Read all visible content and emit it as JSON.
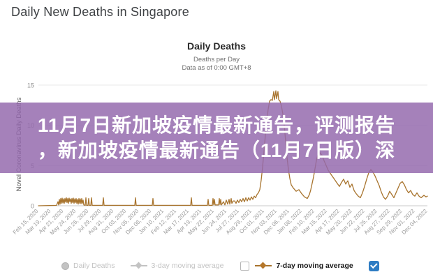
{
  "page_title": "Daily New Deaths in Singapore",
  "overlay": {
    "line1": "11月7日新加坡疫情最新通告，评测报告",
    "line2": "，新加坡疫情最新通告（11月7日版）深",
    "bg_color": "#9a6bb0"
  },
  "legend": {
    "daily_deaths_label": "Daily Deaths",
    "avg3_label": "3-day moving average",
    "avg7_label": "7-day moving average",
    "daily_deaths_state": "disabled",
    "avg3_state": "disabled",
    "avg7_state": "active",
    "checkbox_before_avg7_checked": false,
    "checkbox_right_checked": true,
    "active_color": "#a8742e",
    "disabled_color": "#c3c3c3",
    "checked_box_color": "#2e7cc3"
  },
  "chart_data": {
    "type": "line",
    "title": "Daily Deaths",
    "subtitle1": "Deaths per Day",
    "subtitle2": "Data as of 0:00 GMT+8",
    "ylabel": "Novel Coronavirus Daily Deaths",
    "xlabel": "",
    "ylim": [
      0,
      15
    ],
    "y_ticks": [
      0,
      5,
      10,
      15
    ],
    "grid": "horizontal",
    "legend_position": "bottom",
    "x_range": [
      "Feb 15, 2020",
      "Dec 04, 2022"
    ],
    "x_tick_labels": [
      "Feb 15, 2020",
      "Mar 19, 2020",
      "Apr 21, 2020",
      "May 24, 2020",
      "Jun 26, 2020",
      "Jul 29, 2020",
      "Aug 31, 2020",
      "Oct 03, 2020",
      "Nov 05, 2020",
      "Dec 08, 2020",
      "Jan 10, 2021",
      "Feb 12, 2021",
      "Mar 17, 2021",
      "Apr 19, 2021",
      "May 22, 2021",
      "Jun 24, 2021",
      "Jul 27, 2021",
      "Aug 29, 2021",
      "Oct 01, 2021",
      "Nov 03, 2021",
      "Dec 06, 2021",
      "Jan 08, 2022",
      "Feb 10, 2022",
      "Mar 15, 2022",
      "Apr 17, 2022",
      "May 20, 2022",
      "Jun 22, 2022",
      "Jul 25, 2022",
      "Aug 27, 2022",
      "Sep 29, 2022",
      "Nov 01, 2022",
      "Dec 04, 2022"
    ],
    "series": [
      {
        "name": "7-day moving average",
        "color": "#a8742e",
        "x_unit": "px along time axis (0 = Feb 15 2020, 557 = Dec 04 2022)",
        "points": [
          [
            0,
            0
          ],
          [
            26,
            0.05
          ],
          [
            28,
            0.5
          ],
          [
            29,
            0.1
          ],
          [
            30,
            0.8
          ],
          [
            31,
            0.2
          ],
          [
            32,
            0.9
          ],
          [
            33,
            0.3
          ],
          [
            34,
            0.95
          ],
          [
            35,
            0.35
          ],
          [
            36,
            0.85
          ],
          [
            37,
            0.3
          ],
          [
            38,
            0.9
          ],
          [
            39,
            0.45
          ],
          [
            40,
            1.0
          ],
          [
            41,
            0.4
          ],
          [
            42,
            0.9
          ],
          [
            43,
            0.3
          ],
          [
            44,
            0.95
          ],
          [
            45,
            0.5
          ],
          [
            46,
            0.85
          ],
          [
            47,
            0.3
          ],
          [
            48,
            0.9
          ],
          [
            49,
            0.4
          ],
          [
            50,
            0.95
          ],
          [
            51,
            0.3
          ],
          [
            52,
            0.85
          ],
          [
            53,
            0.4
          ],
          [
            54,
            0.9
          ],
          [
            55,
            0.3
          ],
          [
            56,
            0.8
          ],
          [
            57,
            0.2
          ],
          [
            58,
            0.9
          ],
          [
            59,
            0.3
          ],
          [
            60,
            0.85
          ],
          [
            61,
            0.25
          ],
          [
            62,
            0.9
          ],
          [
            63,
            0.3
          ],
          [
            64,
            0.7
          ],
          [
            65,
            0.1
          ],
          [
            67,
            0.05
          ],
          [
            68,
            1.0
          ],
          [
            69,
            0.05
          ],
          [
            71,
            0.05
          ],
          [
            72,
            0.9
          ],
          [
            73,
            0.05
          ],
          [
            75,
            0.05
          ],
          [
            76,
            1.0
          ],
          [
            77,
            0.05
          ],
          [
            92,
            0.05
          ],
          [
            93,
            1.0
          ],
          [
            94,
            0.05
          ],
          [
            138,
            0.05
          ],
          [
            139,
            1.0
          ],
          [
            140,
            0.05
          ],
          [
            163,
            0.05
          ],
          [
            164,
            0.9
          ],
          [
            165,
            0.05
          ],
          [
            218,
            0.05
          ],
          [
            219,
            1.0
          ],
          [
            220,
            0.05
          ],
          [
            242,
            0.05
          ],
          [
            243,
            0.8
          ],
          [
            244,
            0.05
          ],
          [
            249,
            0.05
          ],
          [
            250,
            0.9
          ],
          [
            251,
            0.1
          ],
          [
            252,
            0.8
          ],
          [
            253,
            0.1
          ],
          [
            258,
            0.1
          ],
          [
            259,
            0.9
          ],
          [
            260,
            0.15
          ],
          [
            261,
            0.8
          ],
          [
            262,
            0.1
          ],
          [
            265,
            0.5
          ],
          [
            267,
            0.1
          ],
          [
            269,
            0.7
          ],
          [
            271,
            0.2
          ],
          [
            273,
            0.8
          ],
          [
            274,
            0.2
          ],
          [
            276,
            0.9
          ],
          [
            277,
            0.3
          ],
          [
            279,
            0.6
          ],
          [
            281,
            0.6
          ],
          [
            283,
            0.3
          ],
          [
            285,
            0.7
          ],
          [
            287,
            0.4
          ],
          [
            289,
            0.8
          ],
          [
            291,
            0.5
          ],
          [
            293,
            0.9
          ],
          [
            295,
            0.5
          ],
          [
            297,
            1.0
          ],
          [
            299,
            0.6
          ],
          [
            301,
            1.0
          ],
          [
            303,
            0.7
          ],
          [
            305,
            1.1
          ],
          [
            307,
            0.8
          ],
          [
            309,
            1.2
          ],
          [
            311,
            1.0
          ],
          [
            313,
            1.4
          ],
          [
            315,
            1.6
          ],
          [
            317,
            2.0
          ],
          [
            319,
            3.2
          ],
          [
            321,
            4.8
          ],
          [
            323,
            6.8
          ],
          [
            325,
            8.8
          ],
          [
            327,
            10.6
          ],
          [
            329,
            12.0
          ],
          [
            331,
            13.0
          ],
          [
            333,
            13.2
          ],
          [
            335,
            13.1
          ],
          [
            337,
            14.2
          ],
          [
            338,
            13.2
          ],
          [
            340,
            14.3
          ],
          [
            341,
            13.3
          ],
          [
            343,
            14.2
          ],
          [
            344,
            13.2
          ],
          [
            346,
            13.0
          ],
          [
            348,
            12.4
          ],
          [
            350,
            11.4
          ],
          [
            352,
            10.0
          ],
          [
            354,
            8.0
          ],
          [
            356,
            6.0
          ],
          [
            358,
            4.5
          ],
          [
            360,
            3.4
          ],
          [
            362,
            2.6
          ],
          [
            365,
            2.2
          ],
          [
            369,
            1.8
          ],
          [
            373,
            2.0
          ],
          [
            377,
            1.5
          ],
          [
            381,
            1.1
          ],
          [
            385,
            0.9
          ],
          [
            388,
            1.4
          ],
          [
            390,
            2.0
          ],
          [
            392,
            2.8
          ],
          [
            394,
            3.6
          ],
          [
            396,
            4.6
          ],
          [
            398,
            5.6
          ],
          [
            400,
            6.3
          ],
          [
            403,
            6.6
          ],
          [
            406,
            6.3
          ],
          [
            409,
            5.6
          ],
          [
            412,
            5.0
          ],
          [
            415,
            4.4
          ],
          [
            419,
            3.9
          ],
          [
            423,
            3.4
          ],
          [
            427,
            2.9
          ],
          [
            431,
            2.4
          ],
          [
            434,
            2.9
          ],
          [
            437,
            3.3
          ],
          [
            440,
            2.7
          ],
          [
            443,
            3.1
          ],
          [
            446,
            2.3
          ],
          [
            449,
            2.7
          ],
          [
            452,
            1.9
          ],
          [
            455,
            1.5
          ],
          [
            458,
            1.2
          ],
          [
            461,
            1.0
          ],
          [
            464,
            1.6
          ],
          [
            467,
            2.4
          ],
          [
            470,
            3.3
          ],
          [
            473,
            4.1
          ],
          [
            476,
            4.5
          ],
          [
            479,
            4.2
          ],
          [
            482,
            3.7
          ],
          [
            485,
            3.1
          ],
          [
            488,
            2.5
          ],
          [
            491,
            1.7
          ],
          [
            494,
            1.1
          ],
          [
            497,
            0.8
          ],
          [
            500,
            1.2
          ],
          [
            503,
            1.8
          ],
          [
            506,
            1.4
          ],
          [
            509,
            1.0
          ],
          [
            512,
            1.6
          ],
          [
            515,
            2.2
          ],
          [
            518,
            2.8
          ],
          [
            521,
            3.0
          ],
          [
            524,
            2.6
          ],
          [
            527,
            2.0
          ],
          [
            530,
            1.6
          ],
          [
            533,
            1.9
          ],
          [
            536,
            1.4
          ],
          [
            539,
            1.2
          ],
          [
            542,
            1.6
          ],
          [
            545,
            1.2
          ],
          [
            548,
            1.0
          ],
          [
            552,
            1.3
          ],
          [
            555,
            1.1
          ],
          [
            557,
            1.2
          ]
        ]
      }
    ],
    "hidden_series_names": [
      "Daily Deaths",
      "3-day moving average"
    ]
  }
}
